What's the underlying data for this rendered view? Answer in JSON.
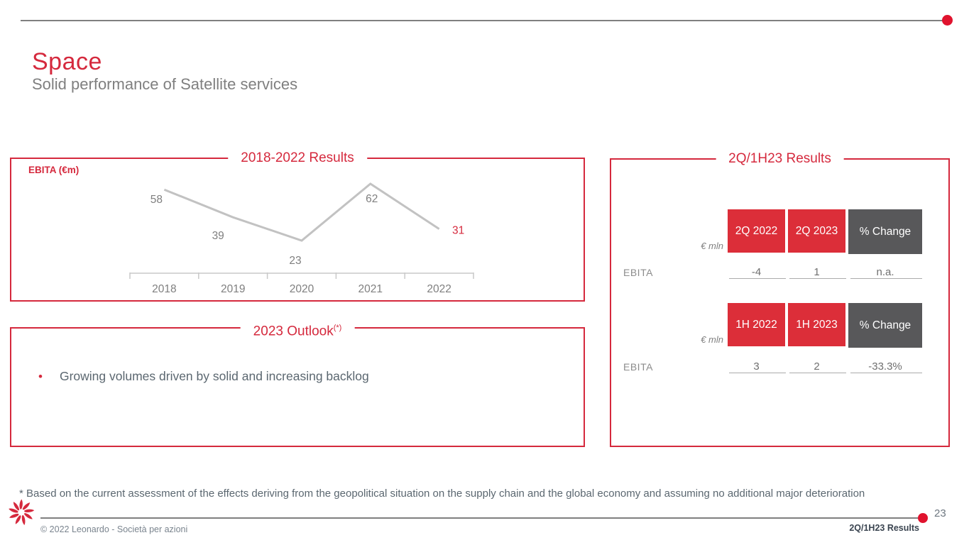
{
  "colors": {
    "brand_red": "#D5293D",
    "box_red": "#DC2E39",
    "box_gray": "#58585A",
    "line_gray": "#C2C2C2",
    "text_gray": "#7F7F7F"
  },
  "header": {
    "title": "Space",
    "subtitle": "Solid performance of Satellite services"
  },
  "chart_panel": {
    "title": "2018-2022 Results",
    "axis_label": "EBITA (€m)"
  },
  "chart_data": {
    "type": "line",
    "title": "2018-2022 Results",
    "ylabel": "EBITA (€m)",
    "categories": [
      "2018",
      "2019",
      "2020",
      "2021",
      "2022"
    ],
    "values": [
      58,
      39,
      23,
      62,
      31
    ],
    "grid": "off",
    "legend": "off",
    "highlight_last": true,
    "line_color": "#C2C2C2",
    "label_color": "#7F7F7F",
    "highlight_color": "#D5293D",
    "axis_color": "#C9C9C9"
  },
  "outlook_panel": {
    "title": "2023 Outlook",
    "title_sup": "(*)",
    "bullets": [
      "Growing volumes driven by solid and increasing backlog"
    ]
  },
  "results_panel": {
    "title": "2Q/1H23 Results",
    "tables": [
      {
        "unit_label": "€ mln",
        "columns": [
          {
            "label": "2Q 2022",
            "style": "red"
          },
          {
            "label": "2Q 2023",
            "style": "red"
          },
          {
            "label": "% Change",
            "style": "gray"
          }
        ],
        "rows": [
          {
            "label": "EBITA",
            "values": [
              "-4",
              "1",
              "n.a."
            ]
          }
        ]
      },
      {
        "unit_label": "€ mln",
        "columns": [
          {
            "label": "1H 2022",
            "style": "red"
          },
          {
            "label": "1H 2023",
            "style": "red"
          },
          {
            "label": "% Change",
            "style": "gray"
          }
        ],
        "rows": [
          {
            "label": "EBITA",
            "values": [
              "3",
              "2",
              "-33.3%"
            ]
          }
        ]
      }
    ]
  },
  "footnote": "* Based on the current assessment of the effects deriving from the geopolitical situation on the supply chain and the global economy and assuming no additional major deterioration",
  "footer": {
    "copyright": "© 2022 Leonardo - Società per azioni",
    "page_number": "23",
    "report_label": "2Q/1H23 Results"
  }
}
